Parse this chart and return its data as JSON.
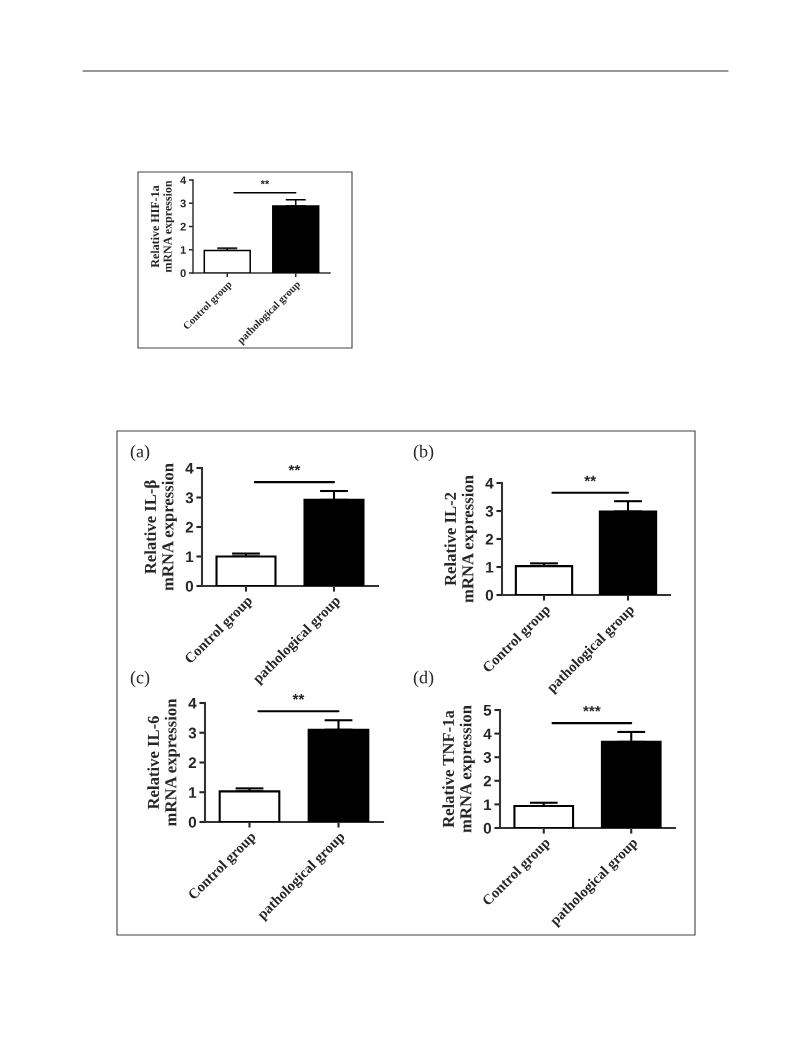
{
  "chart_data": [
    {
      "type": "bar",
      "ylabel": "Relative HIF-1a\nmRNA expression",
      "categories": [
        "Control group",
        "pathological group"
      ],
      "values": [
        0.97,
        2.88
      ],
      "errors": [
        0.1,
        0.27
      ],
      "colors": [
        "#ffffff",
        "#000000"
      ],
      "ylim": [
        0,
        4
      ],
      "yticks": [
        0,
        1,
        2,
        3,
        4
      ],
      "annotations": [
        "**"
      ]
    },
    {
      "type": "bar",
      "title": "(a)",
      "ylabel": "Relative IL-β\nmRNA expression",
      "categories": [
        "Control group",
        "pathological group"
      ],
      "values": [
        1.0,
        2.92
      ],
      "errors": [
        0.1,
        0.3
      ],
      "colors": [
        "#ffffff",
        "#000000"
      ],
      "ylim": [
        0,
        4
      ],
      "yticks": [
        0,
        1,
        2,
        3,
        4
      ],
      "annotations": [
        "**"
      ]
    },
    {
      "type": "bar",
      "title": "(b)",
      "ylabel": "Relative IL-2\nmRNA expression",
      "categories": [
        "Control group",
        "pathological group"
      ],
      "values": [
        1.03,
        2.98
      ],
      "errors": [
        0.1,
        0.37
      ],
      "colors": [
        "#ffffff",
        "#000000"
      ],
      "ylim": [
        0,
        4
      ],
      "yticks": [
        0,
        1,
        2,
        3,
        4
      ],
      "annotations": [
        "**"
      ]
    },
    {
      "type": "bar",
      "title": "(c)",
      "ylabel": "Relative IL-6\nmRNA expression",
      "categories": [
        "Control group",
        "pathological group"
      ],
      "values": [
        1.03,
        3.1
      ],
      "errors": [
        0.1,
        0.32
      ],
      "colors": [
        "#ffffff",
        "#000000"
      ],
      "ylim": [
        0,
        4
      ],
      "yticks": [
        0,
        1,
        2,
        3,
        4
      ],
      "annotations": [
        "**"
      ]
    },
    {
      "type": "bar",
      "title": "(d)",
      "ylabel": "Relative TNF-1a\nmRNA expression",
      "categories": [
        "Control group",
        "pathological group"
      ],
      "values": [
        0.93,
        3.65
      ],
      "errors": [
        0.14,
        0.42
      ],
      "colors": [
        "#ffffff",
        "#000000"
      ],
      "ylim": [
        0,
        5
      ],
      "yticks": [
        0,
        1,
        2,
        3,
        4,
        5
      ],
      "annotations": [
        "***"
      ]
    }
  ]
}
